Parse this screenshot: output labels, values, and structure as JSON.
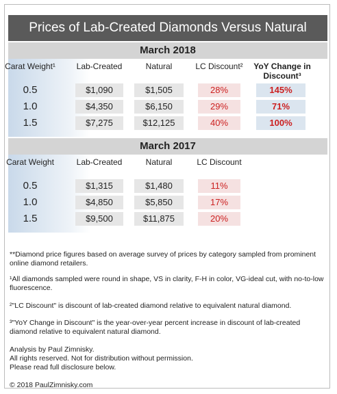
{
  "title": "Prices of Lab-Created Diamonds Versus Natural",
  "tables": [
    {
      "heading": "March 2018",
      "columns": [
        "Carat Weight¹",
        "Lab-Created",
        "Natural",
        "LC Discount²",
        "YoY Change in Discount³"
      ],
      "rows": [
        [
          "0.5",
          "$1,090",
          "$1,505",
          "28%",
          "145%"
        ],
        [
          "1.0",
          "$4,350",
          "$6,150",
          "29%",
          "71%"
        ],
        [
          "1.5",
          "$7,275",
          "$12,125",
          "40%",
          "100%"
        ]
      ]
    },
    {
      "heading": "March 2017",
      "columns": [
        "Carat Weight",
        "Lab-Created",
        "Natural",
        "LC Discount"
      ],
      "rows": [
        [
          "0.5",
          "$1,315",
          "$1,480",
          "11%"
        ],
        [
          "1.0",
          "$4,850",
          "$5,850",
          "17%"
        ],
        [
          "1.5",
          "$9,500",
          "$11,875",
          "20%"
        ]
      ]
    }
  ],
  "notes": [
    "**Diamond price figures based on average survey of prices by category sampled from prominent online diamond retailers.",
    "¹All diamonds sampled were round in shape, VS in clarity, F-H in color, VG-ideal cut, with no-to-low fluorescence.",
    "²\"LC Discount\" is discount of lab-created diamond relative to equivalent natural diamond.",
    "³\"YoY Change in Discount\" is the year-over-year percent increase in discount of lab-created diamond relative to equivalent natural diamond."
  ],
  "credits": [
    "Analysis by Paul Zimnisky.",
    "All rights reserved. Not for distribution without permission.",
    "Please read full disclosure below."
  ],
  "copyright": "© 2018 PaulZimnisky.com"
}
